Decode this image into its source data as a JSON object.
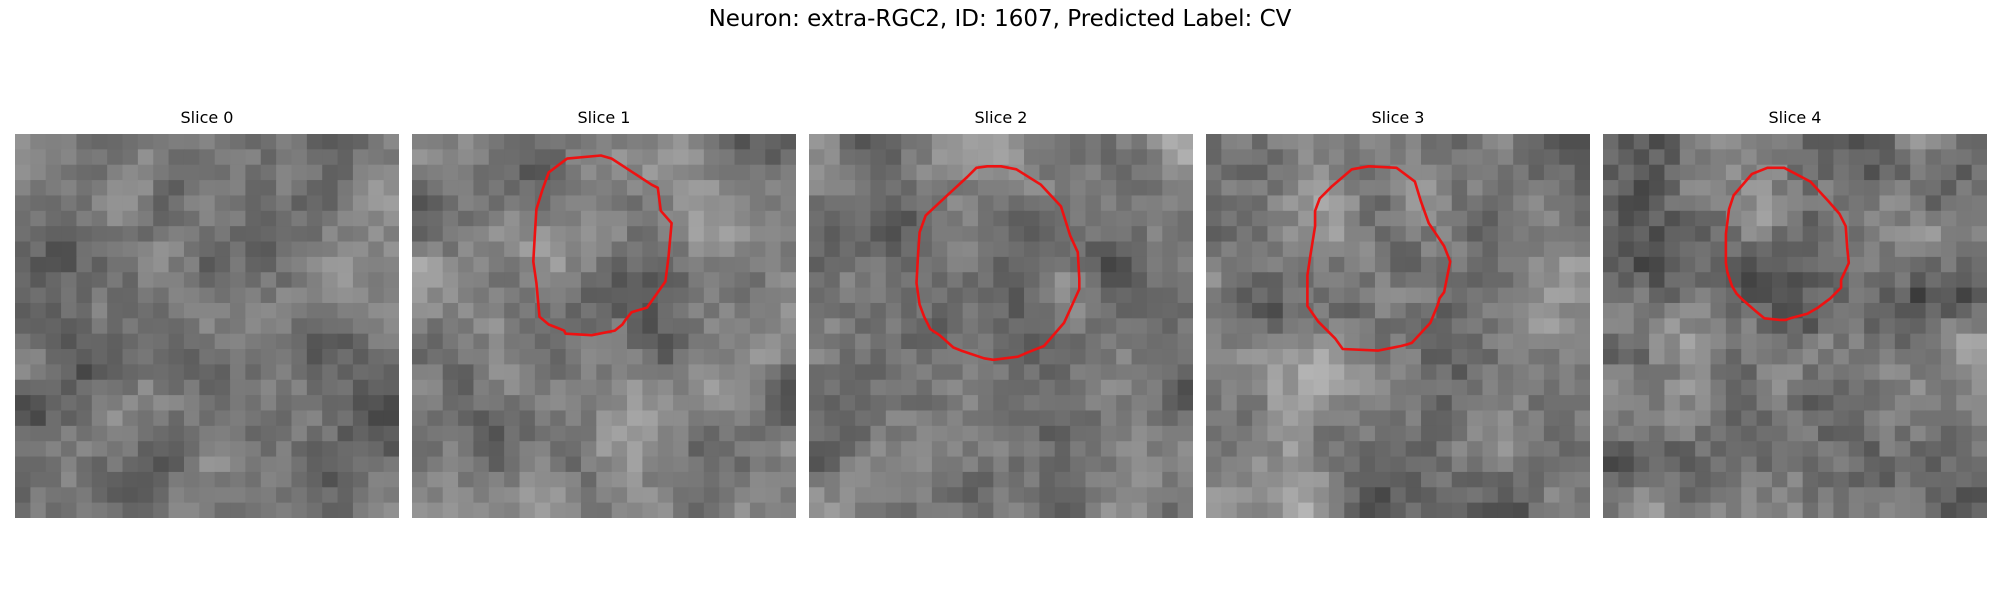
{
  "figure": {
    "title": "Neuron: extra-RGC2, ID: 1607, Predicted Label: CV"
  },
  "colors": {
    "contour": "#ee1111",
    "background": "#ffffff"
  },
  "grid_size": 25,
  "slices": [
    {
      "title": "Slice 0",
      "contour": null,
      "seed": 11,
      "mean": 120,
      "variation": 70
    },
    {
      "title": "Slice 1",
      "contour": [
        [
          8.9,
          2.5
        ],
        [
          10.1,
          1.6
        ],
        [
          12.3,
          1.4
        ],
        [
          13.0,
          1.6
        ],
        [
          15.6,
          3.3
        ],
        [
          16.0,
          3.5
        ],
        [
          16.2,
          5.0
        ],
        [
          16.9,
          5.8
        ],
        [
          16.7,
          8.0
        ],
        [
          16.5,
          9.6
        ],
        [
          15.3,
          11.3
        ],
        [
          14.3,
          11.6
        ],
        [
          13.9,
          12.1
        ],
        [
          13.7,
          12.4
        ],
        [
          13.2,
          12.8
        ],
        [
          11.7,
          13.1
        ],
        [
          10.0,
          13.0
        ],
        [
          9.9,
          12.8
        ],
        [
          9.4,
          12.6
        ],
        [
          8.9,
          12.4
        ],
        [
          8.3,
          11.9
        ],
        [
          8.1,
          9.7
        ],
        [
          7.9,
          8.3
        ],
        [
          8.0,
          6.5
        ],
        [
          8.1,
          4.9
        ],
        [
          8.5,
          3.6
        ]
      ],
      "seed": 21,
      "mean": 125,
      "variation": 75
    },
    {
      "title": "Slice 2",
      "contour": [
        [
          7.6,
          5.3
        ],
        [
          9.1,
          3.9
        ],
        [
          10.3,
          2.8
        ],
        [
          10.9,
          2.2
        ],
        [
          11.6,
          2.1
        ],
        [
          12.5,
          2.1
        ],
        [
          13.5,
          2.3
        ],
        [
          15.1,
          3.3
        ],
        [
          16.4,
          4.7
        ],
        [
          17.0,
          6.6
        ],
        [
          17.5,
          7.7
        ],
        [
          17.6,
          9.4
        ],
        [
          17.6,
          10.1
        ],
        [
          17.1,
          11.2
        ],
        [
          16.6,
          12.3
        ],
        [
          15.3,
          13.8
        ],
        [
          14.3,
          14.2
        ],
        [
          13.6,
          14.5
        ],
        [
          12.0,
          14.7
        ],
        [
          11.4,
          14.6
        ],
        [
          9.9,
          14.1
        ],
        [
          9.4,
          13.9
        ],
        [
          8.5,
          13.1
        ],
        [
          7.9,
          12.7
        ],
        [
          7.5,
          11.9
        ],
        [
          7.2,
          11.1
        ],
        [
          7.0,
          9.7
        ],
        [
          7.1,
          7.8
        ],
        [
          7.2,
          6.4
        ]
      ],
      "seed": 31,
      "mean": 118,
      "variation": 70
    },
    {
      "title": "Slice 3",
      "contour": [
        [
          7.4,
          4.2
        ],
        [
          8.2,
          3.4
        ],
        [
          9.5,
          2.3
        ],
        [
          10.6,
          2.1
        ],
        [
          12.4,
          2.2
        ],
        [
          13.6,
          3.1
        ],
        [
          14.0,
          4.4
        ],
        [
          14.5,
          5.8
        ],
        [
          14.9,
          6.4
        ],
        [
          15.5,
          7.3
        ],
        [
          15.9,
          8.3
        ],
        [
          15.5,
          10.3
        ],
        [
          15.2,
          10.7
        ],
        [
          15.1,
          11.1
        ],
        [
          14.6,
          12.3
        ],
        [
          13.4,
          13.6
        ],
        [
          13.1,
          13.7
        ],
        [
          12.7,
          13.8
        ],
        [
          11.2,
          14.1
        ],
        [
          8.9,
          14.0
        ],
        [
          8.4,
          13.3
        ],
        [
          7.3,
          12.2
        ],
        [
          6.6,
          11.2
        ],
        [
          6.6,
          9.2
        ],
        [
          6.8,
          7.9
        ],
        [
          7.1,
          6.0
        ],
        [
          7.1,
          5.0
        ]
      ],
      "seed": 41,
      "mean": 122,
      "variation": 80
    },
    {
      "title": "Slice 4",
      "contour": [
        [
          8.5,
          4.0
        ],
        [
          9.7,
          2.6
        ],
        [
          10.7,
          2.2
        ],
        [
          11.8,
          2.2
        ],
        [
          13.5,
          3.1
        ],
        [
          14.7,
          4.4
        ],
        [
          15.4,
          5.2
        ],
        [
          15.8,
          6.0
        ],
        [
          15.9,
          7.4
        ],
        [
          16.0,
          8.4
        ],
        [
          15.5,
          9.5
        ],
        [
          15.5,
          10.0
        ],
        [
          14.8,
          10.7
        ],
        [
          14.0,
          11.3
        ],
        [
          13.3,
          11.7
        ],
        [
          12.2,
          12.0
        ],
        [
          11.9,
          12.1
        ],
        [
          11.5,
          12.1
        ],
        [
          10.5,
          12.0
        ],
        [
          9.9,
          11.5
        ],
        [
          9.1,
          10.8
        ],
        [
          8.7,
          10.4
        ],
        [
          8.4,
          9.9
        ],
        [
          8.1,
          9.0
        ],
        [
          8.0,
          8.4
        ],
        [
          8.0,
          6.5
        ],
        [
          8.2,
          4.9
        ]
      ],
      "seed": 51,
      "mean": 118,
      "variation": 85
    }
  ]
}
